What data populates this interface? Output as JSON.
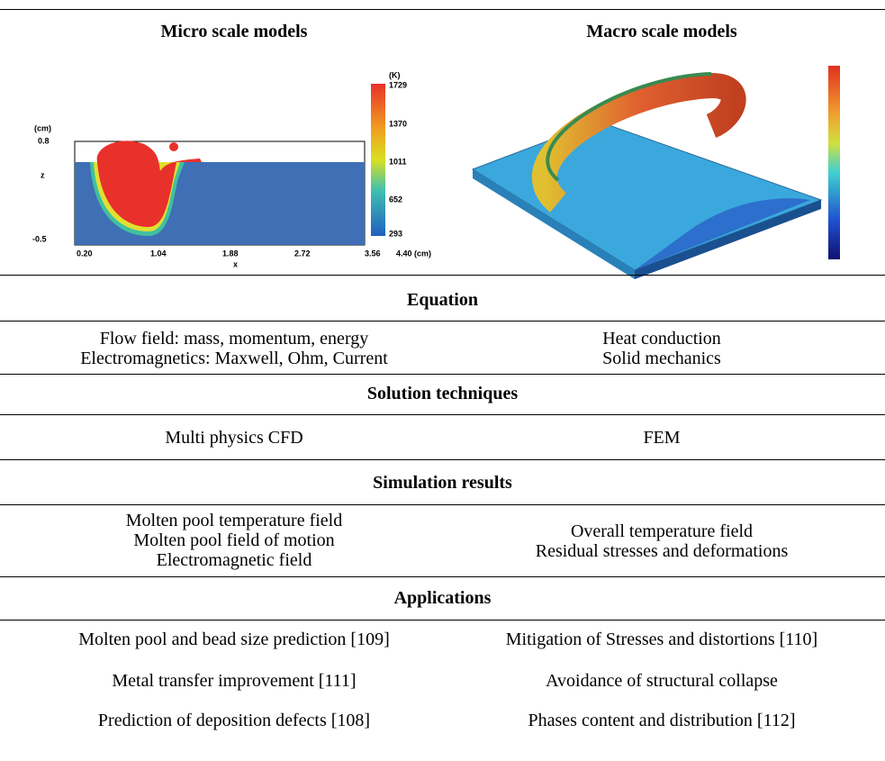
{
  "header": {
    "columns": [
      "Micro scale models",
      "Macro scale models"
    ]
  },
  "micro_figure": {
    "unit_label": "(K)",
    "colorbar_ticks": [
      "1729",
      "1370",
      "1011",
      "652",
      "293"
    ],
    "y_unit": "(cm)",
    "y_ticks": [
      "0.8",
      "-0.5"
    ],
    "y_label": "z",
    "x_ticks": [
      "0.20",
      "1.04",
      "1.88",
      "2.72",
      "3.56",
      "4.40 (cm)"
    ],
    "x_label": "x"
  },
  "sections": [
    {
      "title": "Equation",
      "left": [
        "Flow field: mass, momentum, energy",
        "Electromagnetics: Maxwell, Ohm, Current"
      ],
      "right": [
        "Heat conduction",
        "Solid mechanics"
      ]
    },
    {
      "title": "Solution techniques",
      "left": [
        "Multi physics CFD"
      ],
      "right": [
        "FEM"
      ]
    },
    {
      "title": "Simulation results",
      "left": [
        "Molten pool temperature field",
        "Molten pool field of motion",
        "Electromagnetic field"
      ],
      "right": [
        "Overall temperature field",
        "Residual stresses and deformations"
      ]
    },
    {
      "title": "Applications",
      "rows": [
        [
          "Molten pool and bead size prediction [109]",
          "Mitigation of Stresses and distortions [110]"
        ],
        [
          "Metal transfer improvement [111]",
          "Avoidance of structural collapse"
        ],
        [
          "Prediction of deposition defects [108]",
          "Phases content and distribution [112]"
        ]
      ]
    }
  ]
}
